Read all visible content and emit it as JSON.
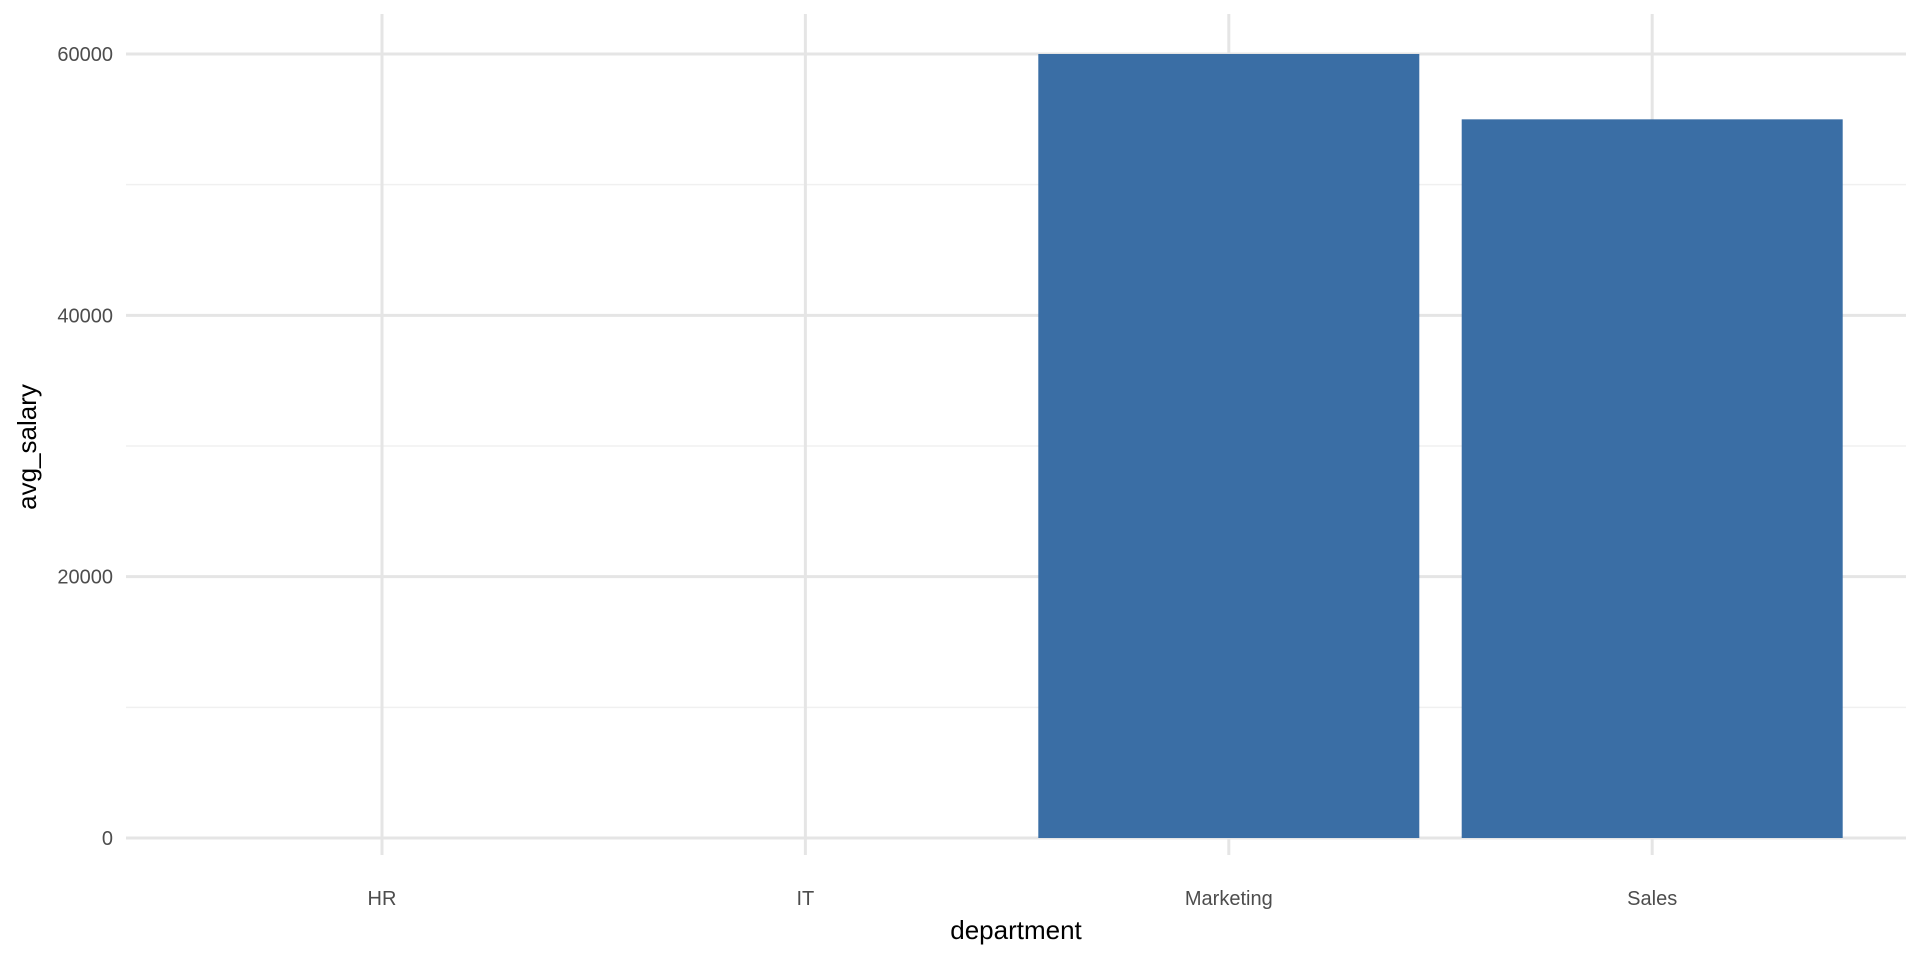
{
  "chart_data": {
    "type": "bar",
    "title": "",
    "xlabel": "department",
    "ylabel": "avg_salary",
    "categories": [
      "HR",
      "IT",
      "Marketing",
      "Sales"
    ],
    "values": [
      0,
      0,
      60000,
      55000
    ],
    "ylim": [
      0,
      60000
    ],
    "yticks": [
      0,
      20000,
      40000,
      60000
    ],
    "ytick_labels": [
      "0",
      "20000",
      "40000",
      "60000"
    ],
    "minor_yticks": [
      10000,
      30000,
      50000
    ],
    "grid": true,
    "legend": "none",
    "colors": {
      "bar": "#3a6ea5",
      "grid_major": "#e5e5e5",
      "grid_minor": "#f0f0f0",
      "tick_text": "#4d4d4d",
      "axis_title": "#000000"
    }
  }
}
